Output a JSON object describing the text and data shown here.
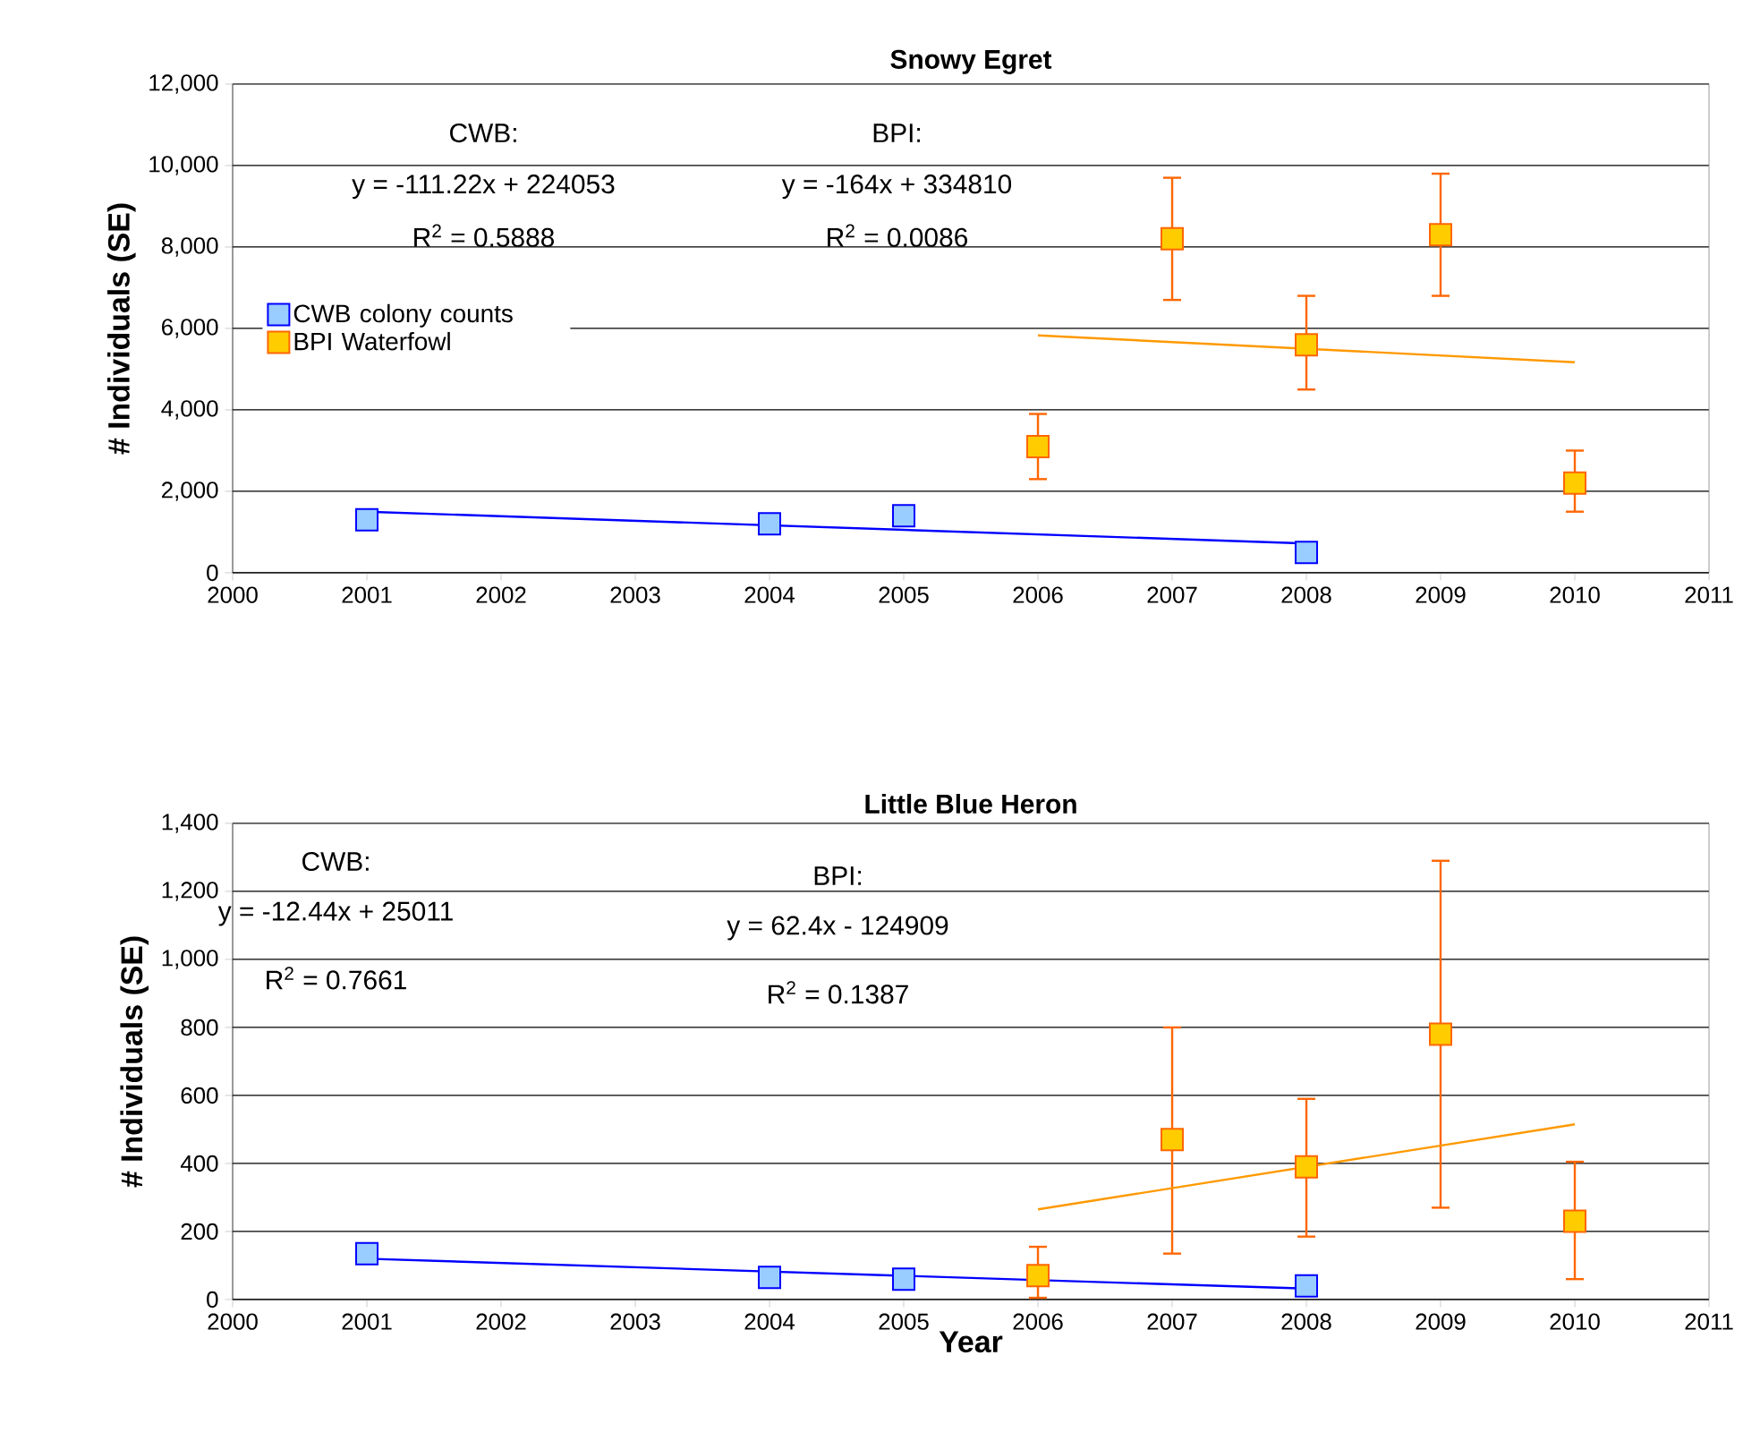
{
  "chart_data": [
    {
      "type": "scatter",
      "title": "Snowy Egret",
      "ylabel": "# Individuals (SE)",
      "xlim": [
        2000,
        2011
      ],
      "xticks": [
        2000,
        2001,
        2002,
        2003,
        2004,
        2005,
        2006,
        2007,
        2008,
        2009,
        2010,
        2011
      ],
      "ylim": [
        0,
        12000
      ],
      "yticks": [
        0,
        {
          "value": 2000,
          "label": "2,000"
        },
        {
          "value": 4000,
          "label": "4,000"
        },
        {
          "value": 6000,
          "label": "6,000"
        },
        {
          "value": 8000,
          "label": "8,000"
        },
        {
          "value": 10000,
          "label": "10,000"
        },
        {
          "value": 12000,
          "label": "12,000"
        }
      ],
      "grid": "y",
      "legend": "left",
      "marker": "square",
      "annotations": [
        "CWB:",
        "y = -111.22x + 224053",
        "R$^{2}$ = 0.5888",
        "BPI:",
        "y = -164x + 334810",
        "R$^{2}$ = 0.0086"
      ],
      "series": [
        {
          "name": "CWB colony counts",
          "color": "#99ccff",
          "x": [
            2001,
            2004,
            2005,
            2008
          ],
          "values": [
            1300,
            1200,
            1400,
            500
          ]
        },
        {
          "name": "BPI Waterfowl",
          "color": "#ffcc00",
          "x": [
            2006,
            2007,
            2008,
            2009,
            2010
          ],
          "values": [
            3100,
            8200,
            5600,
            8300,
            2200
          ],
          "errors": [
            [
              2300,
              3900
            ],
            [
              6700,
              9700
            ],
            [
              4500,
              6800
            ],
            [
              6800,
              9800
            ],
            [
              1500,
              3000
            ]
          ]
        },
        {
          "type": "line",
          "color": "#0000ff",
          "marker": "none",
          "x": [
            2001,
            2008
          ],
          "values": [
            1500,
            720
          ]
        },
        {
          "type": "line",
          "color": "#ff9900",
          "marker": "none",
          "x": [
            2006,
            2010
          ],
          "values": [
            5830,
            5170
          ]
        }
      ]
    },
    {
      "type": "scatter",
      "title": "Little Blue Heron",
      "xlabel": "Year",
      "ylabel": "# Individuals (SE)",
      "xlim": [
        2000,
        2011
      ],
      "xticks": [
        2000,
        2001,
        2002,
        2003,
        2004,
        2005,
        2006,
        2007,
        2008,
        2009,
        2010,
        2011
      ],
      "ylim": [
        0,
        1400
      ],
      "yticks": [
        0,
        200,
        400,
        600,
        800,
        {
          "value": 1000,
          "label": "1,000"
        },
        {
          "value": 1200,
          "label": "1,200"
        },
        {
          "value": 1400,
          "label": "1,400"
        }
      ],
      "grid": "y",
      "marker": "square",
      "annotations": [
        "CWB:",
        "y = -12.44x + 25011",
        "R$^{2}$ = 0.7661",
        "BPI:",
        "y = 62.4x - 124909",
        "R$^{2}$ = 0.1387"
      ],
      "series": [
        {
          "color": "#99ccff",
          "x": [
            2001,
            2004,
            2005,
            2008
          ],
          "values": [
            135,
            65,
            60,
            40
          ]
        },
        {
          "color": "#ffcc00",
          "x": [
            2006,
            2007,
            2008,
            2009,
            2010
          ],
          "values": [
            70,
            470,
            390,
            780,
            230
          ],
          "errors": [
            [
              5,
              155
            ],
            [
              135,
              800
            ],
            [
              185,
              590
            ],
            [
              270,
              1290
            ],
            [
              60,
              405
            ]
          ]
        },
        {
          "type": "line",
          "color": "#0000ff",
          "marker": "none",
          "x": [
            2001,
            2008
          ],
          "values": [
            120,
            32
          ]
        },
        {
          "type": "line",
          "color": "#ff9900",
          "marker": "none",
          "x": [
            2006,
            2010
          ],
          "values": [
            265,
            515
          ]
        }
      ]
    }
  ]
}
